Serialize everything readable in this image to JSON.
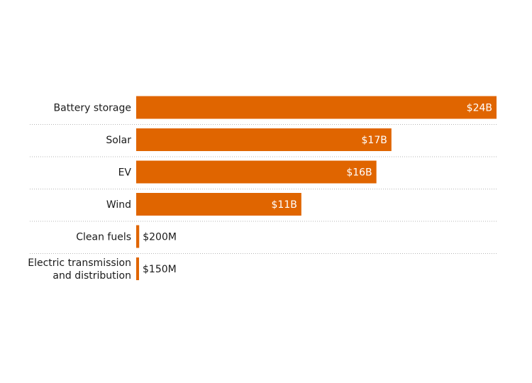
{
  "chart_data": {
    "type": "bar",
    "orientation": "horizontal",
    "bar_color": "#e06500",
    "inside_label_color": "#ffffff",
    "outside_label_color": "#1a1a1a",
    "grid": false,
    "xlim": [
      0,
      24
    ],
    "unit": "billion USD",
    "categories": [
      [
        "Battery storage"
      ],
      [
        "Solar"
      ],
      [
        "EV"
      ],
      [
        "Wind"
      ],
      [
        "Clean fuels"
      ],
      [
        "Electric transmission",
        "and distribution"
      ]
    ],
    "values": [
      24,
      17,
      16,
      11,
      0.2,
      0.15
    ],
    "value_labels": [
      "$24B",
      "$17B",
      "$16B",
      "$11B",
      "$200M",
      "$150M"
    ]
  }
}
